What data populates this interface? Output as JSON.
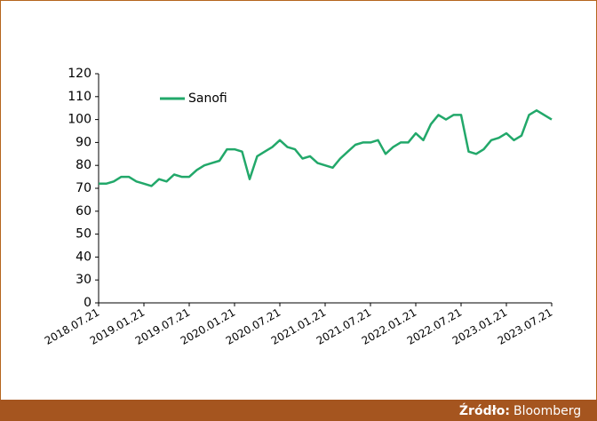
{
  "chart_data": {
    "type": "line",
    "x": [
      "2018.07.21",
      "2018.08.21",
      "2018.09.21",
      "2018.10.21",
      "2018.11.21",
      "2018.12.21",
      "2019.01.21",
      "2019.02.21",
      "2019.03.21",
      "2019.04.21",
      "2019.05.21",
      "2019.06.21",
      "2019.07.21",
      "2019.08.21",
      "2019.09.21",
      "2019.10.21",
      "2019.11.21",
      "2019.12.21",
      "2020.01.21",
      "2020.02.21",
      "2020.03.21",
      "2020.04.21",
      "2020.05.21",
      "2020.06.21",
      "2020.07.21",
      "2020.08.21",
      "2020.09.21",
      "2020.10.21",
      "2020.11.21",
      "2020.12.21",
      "2021.01.21",
      "2021.02.21",
      "2021.03.21",
      "2021.04.21",
      "2021.05.21",
      "2021.06.21",
      "2021.07.21",
      "2021.08.21",
      "2021.09.21",
      "2021.10.21",
      "2021.11.21",
      "2021.12.21",
      "2022.01.21",
      "2022.02.21",
      "2022.03.21",
      "2022.04.21",
      "2022.05.21",
      "2022.06.21",
      "2022.07.21",
      "2022.08.21",
      "2022.09.21",
      "2022.10.21",
      "2022.11.21",
      "2022.12.21",
      "2023.01.21",
      "2023.02.21",
      "2023.03.21",
      "2023.04.21",
      "2023.05.21",
      "2023.06.21",
      "2023.07.21"
    ],
    "series": [
      {
        "name": "Sanofi",
        "color": "#22a86a",
        "values": [
          72,
          72,
          73,
          75,
          75,
          73,
          72,
          71,
          74,
          73,
          76,
          75,
          75,
          78,
          80,
          81,
          82,
          87,
          87,
          86,
          74,
          84,
          86,
          88,
          91,
          88,
          87,
          83,
          84,
          81,
          80,
          79,
          83,
          86,
          89,
          90,
          90,
          91,
          85,
          88,
          90,
          90,
          94,
          91,
          98,
          102,
          100,
          102,
          102,
          86,
          85,
          87,
          91,
          92,
          94,
          91,
          93,
          102,
          104,
          102,
          100
        ]
      }
    ],
    "xlim": [
      "2018.07.21",
      "2023.07.21"
    ],
    "xticks": [
      "2018.07.21",
      "2019.01.21",
      "2019.07.21",
      "2020.01.21",
      "2020.07.21",
      "2021.01.21",
      "2021.07.21",
      "2022.01.21",
      "2022.07.21",
      "2023.01.21",
      "2023.07.21"
    ],
    "ylim": [
      0,
      120
    ],
    "yticks": [
      0,
      30,
      40,
      50,
      60,
      70,
      80,
      90,
      100,
      110,
      120
    ],
    "source_label": "Źródło:",
    "source": "Bloomberg"
  }
}
